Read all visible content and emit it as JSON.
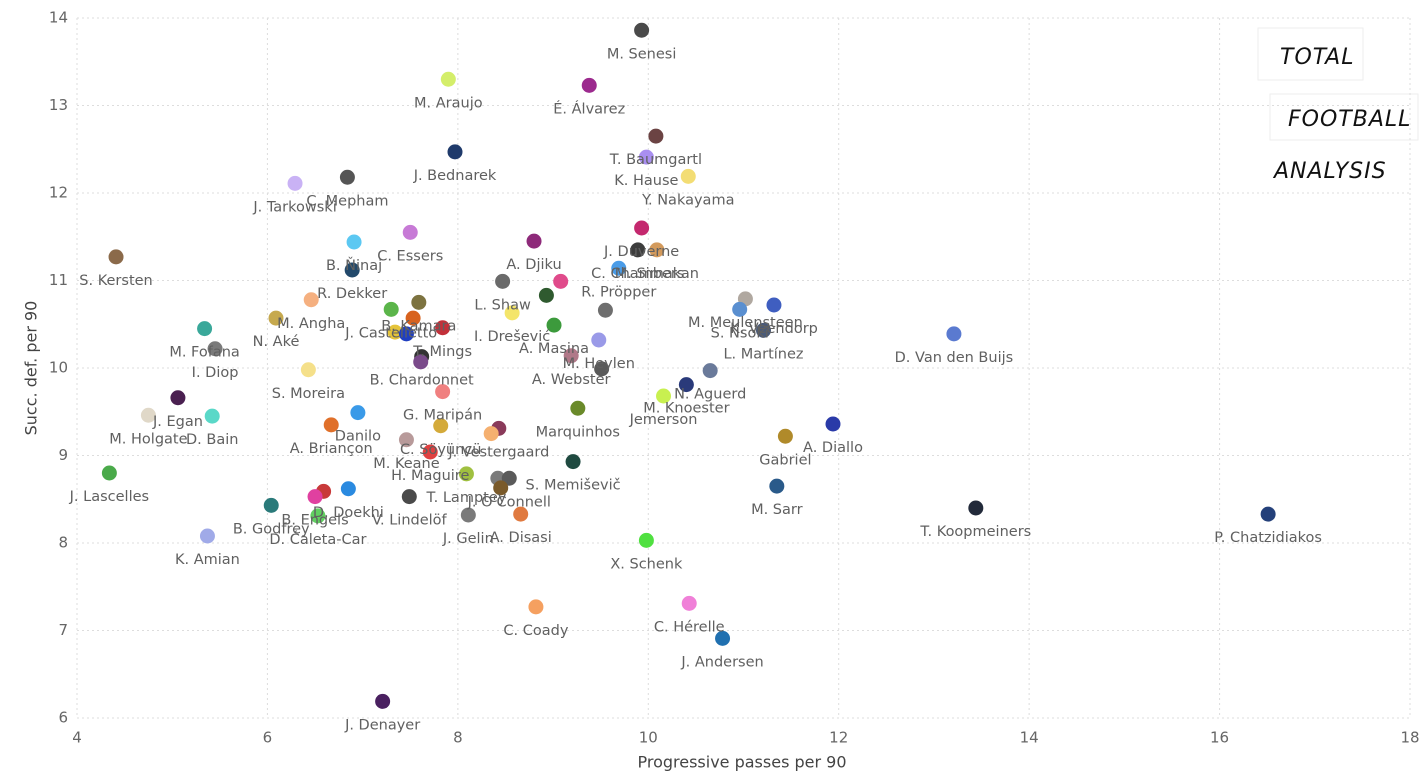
{
  "logo": [
    "TOTAL",
    "FOOTBALL",
    "ANALYSIS"
  ],
  "chart_data": {
    "type": "scatter",
    "x_label": "Progressive passes per 90",
    "y_label": "Succ. def. per 90",
    "xlim": [
      4,
      18
    ],
    "ylim": [
      6,
      14
    ],
    "xticks": [
      4,
      6,
      8,
      10,
      12,
      14,
      16,
      18
    ],
    "yticks": [
      6,
      7,
      8,
      9,
      10,
      11,
      12,
      13,
      14
    ],
    "grid": true,
    "points": [
      {
        "x": 9.93,
        "y": 13.86,
        "label": "M. Senesi",
        "color": "#4a4a4a"
      },
      {
        "x": 7.9,
        "y": 13.3,
        "label": "M. Araujo",
        "color": "#d4ee6a"
      },
      {
        "x": 9.38,
        "y": 13.23,
        "label": "É. Álvarez",
        "color": "#9c2a8e"
      },
      {
        "x": 10.08,
        "y": 12.65,
        "label": "T. Baumgartl",
        "color": "#6b4343"
      },
      {
        "x": 9.98,
        "y": 12.41,
        "label": "K. Hause",
        "color": "#a98ff0"
      },
      {
        "x": 7.97,
        "y": 12.47,
        "label": "J. Bednarek",
        "color": "#1f3a6b"
      },
      {
        "x": 6.84,
        "y": 12.18,
        "label": "C. Mepham",
        "color": "#555555"
      },
      {
        "x": 6.29,
        "y": 12.11,
        "label": "J. Tarkowski",
        "color": "#c9b2f5"
      },
      {
        "x": 10.42,
        "y": 12.19,
        "label": "Y. Nakayama",
        "color": "#f3dd74"
      },
      {
        "x": 9.93,
        "y": 11.6,
        "label": "J. Duverne",
        "color": "#c4286e"
      },
      {
        "x": 10.09,
        "y": 11.35,
        "label": "M. Simakan",
        "color": "#d39a5c"
      },
      {
        "x": 9.89,
        "y": 11.35,
        "label": "C. Chambers",
        "color": "#3d3d3d"
      },
      {
        "x": 6.91,
        "y": 11.44,
        "label": "B. Ňinaj",
        "color": "#5cc8f2"
      },
      {
        "x": 7.5,
        "y": 11.55,
        "label": "C. Essers",
        "color": "#c77ad6"
      },
      {
        "x": 8.8,
        "y": 11.45,
        "label": "A. Djiku",
        "color": "#8e2a7a"
      },
      {
        "x": 4.41,
        "y": 11.27,
        "label": "S. Kersten",
        "color": "#8b6a4a"
      },
      {
        "x": 6.89,
        "y": 11.12,
        "label": "R. Dekker",
        "color": "#22496b"
      },
      {
        "x": 9.69,
        "y": 11.14,
        "label": "R. Pröpper",
        "color": "#4a9ce8"
      },
      {
        "x": 9.08,
        "y": 10.99,
        "label": null,
        "color": "#e04b8b"
      },
      {
        "x": 8.47,
        "y": 10.99,
        "label": "L. Shaw",
        "color": "#6a6a6a"
      },
      {
        "x": 6.46,
        "y": 10.78,
        "label": "M. Angha",
        "color": "#f5b080"
      },
      {
        "x": 7.59,
        "y": 10.75,
        "label": "B. Kamara",
        "color": "#7d7340"
      },
      {
        "x": 8.93,
        "y": 10.83,
        "label": null,
        "color": "#2f5a2f"
      },
      {
        "x": 11.02,
        "y": 10.79,
        "label": "M. Meulensteen",
        "color": "#b0a8a0"
      },
      {
        "x": 11.32,
        "y": 10.72,
        "label": "K. Veendorp",
        "color": "#3f5ec0"
      },
      {
        "x": 10.96,
        "y": 10.67,
        "label": "S. Nsoki",
        "color": "#5a8fd0"
      },
      {
        "x": 9.55,
        "y": 10.66,
        "label": null,
        "color": "#6e6e6e"
      },
      {
        "x": 8.57,
        "y": 10.63,
        "label": "I. Drešević",
        "color": "#f4e56a"
      },
      {
        "x": 5.34,
        "y": 10.45,
        "label": "M. Fofana",
        "color": "#3aa89a"
      },
      {
        "x": 6.09,
        "y": 10.57,
        "label": "N. Aké",
        "color": "#c6a94e"
      },
      {
        "x": 7.3,
        "y": 10.67,
        "label": "J. Castelletto",
        "color": "#5bb54a"
      },
      {
        "x": 7.84,
        "y": 10.46,
        "label": "T. Mings",
        "color": "#c2303a"
      },
      {
        "x": 7.53,
        "y": 10.57,
        "label": null,
        "color": "#d8621e"
      },
      {
        "x": 9.01,
        "y": 10.49,
        "label": "A. Masina",
        "color": "#3c9a3c"
      },
      {
        "x": 9.48,
        "y": 10.32,
        "label": "M. Heylen",
        "color": "#9a9ae8"
      },
      {
        "x": 11.21,
        "y": 10.43,
        "label": "L. Martínez",
        "color": "#4a5a78"
      },
      {
        "x": 13.21,
        "y": 10.39,
        "label": "D. Van den Buijs",
        "color": "#5a7ad0"
      },
      {
        "x": 5.45,
        "y": 10.22,
        "label": "I. Diop",
        "color": "#7a7a7a"
      },
      {
        "x": 7.34,
        "y": 10.41,
        "label": null,
        "color": "#e5c43a"
      },
      {
        "x": 7.46,
        "y": 10.39,
        "label": null,
        "color": "#1f3fc0"
      },
      {
        "x": 7.62,
        "y": 10.13,
        "label": "B. Chardonnet",
        "color": "#333333"
      },
      {
        "x": 7.61,
        "y": 10.07,
        "label": null,
        "color": "#7a4a8a"
      },
      {
        "x": 9.19,
        "y": 10.14,
        "label": "A. Webster",
        "color": "#b07888"
      },
      {
        "x": 9.51,
        "y": 9.99,
        "label": null,
        "color": "#5a5a5a"
      },
      {
        "x": 10.65,
        "y": 9.97,
        "label": "N. Aguerd",
        "color": "#6a7a9a"
      },
      {
        "x": 10.4,
        "y": 9.81,
        "label": "M. Knoester",
        "color": "#2a3a7a"
      },
      {
        "x": 6.43,
        "y": 9.98,
        "label": "S. Moreira",
        "color": "#f5e08a"
      },
      {
        "x": 5.06,
        "y": 9.66,
        "label": "J. Egan",
        "color": "#4a2050"
      },
      {
        "x": 4.75,
        "y": 9.46,
        "label": "M. Holgate",
        "color": "#e0d8c8"
      },
      {
        "x": 5.42,
        "y": 9.45,
        "label": "D. Bain",
        "color": "#5ad8c8"
      },
      {
        "x": 7.84,
        "y": 9.73,
        "label": "G. Maripán",
        "color": "#f08080"
      },
      {
        "x": 9.26,
        "y": 9.54,
        "label": "Marquinhos",
        "color": "#6a8a2a"
      },
      {
        "x": 10.16,
        "y": 9.68,
        "label": "Jemerson",
        "color": "#c8f050"
      },
      {
        "x": 6.95,
        "y": 9.49,
        "label": "Danilo",
        "color": "#3a9ae8"
      },
      {
        "x": 7.82,
        "y": 9.34,
        "label": "C. Söyüncü",
        "color": "#d4aa3a"
      },
      {
        "x": 8.43,
        "y": 9.31,
        "label": "J. Vestergaard",
        "color": "#8a3a5a"
      },
      {
        "x": 8.35,
        "y": 9.25,
        "label": null,
        "color": "#f5b070"
      },
      {
        "x": 6.67,
        "y": 9.35,
        "label": "A. Briançon",
        "color": "#e0702a"
      },
      {
        "x": 7.46,
        "y": 9.18,
        "label": "M. Keane",
        "color": "#b89a9a"
      },
      {
        "x": 11.44,
        "y": 9.22,
        "label": "Gabriel",
        "color": "#b08a2a"
      },
      {
        "x": 11.94,
        "y": 9.36,
        "label": "A. Diallo",
        "color": "#2a3aa8"
      },
      {
        "x": 7.71,
        "y": 9.04,
        "label": "H. Maguire",
        "color": "#e04040"
      },
      {
        "x": 9.21,
        "y": 8.93,
        "label": "S. Memiševič",
        "color": "#1f4a40"
      },
      {
        "x": 4.34,
        "y": 8.8,
        "label": "J. Lascelles",
        "color": "#4aaa4a"
      },
      {
        "x": 8.09,
        "y": 8.79,
        "label": "T. Lamptey",
        "color": "#a0c040"
      },
      {
        "x": 8.42,
        "y": 8.74,
        "label": null,
        "color": "#7a7a7a"
      },
      {
        "x": 8.54,
        "y": 8.74,
        "label": "J. O'Connell",
        "color": "#5a5a5a"
      },
      {
        "x": 8.45,
        "y": 8.63,
        "label": null,
        "color": "#7a5a2a"
      },
      {
        "x": 11.35,
        "y": 8.65,
        "label": "M. Sarr",
        "color": "#2a5a8a"
      },
      {
        "x": 13.44,
        "y": 8.4,
        "label": "T. Koopmeiners",
        "color": "#222a3a"
      },
      {
        "x": 16.51,
        "y": 8.33,
        "label": "P. Chatzidiakos",
        "color": "#24407a"
      },
      {
        "x": 6.04,
        "y": 8.43,
        "label": "B. Godfrey",
        "color": "#2a7a7a"
      },
      {
        "x": 6.59,
        "y": 8.59,
        "label": null,
        "color": "#c83a3a"
      },
      {
        "x": 6.5,
        "y": 8.53,
        "label": "B. Engels",
        "color": "#e040a0"
      },
      {
        "x": 6.85,
        "y": 8.62,
        "label": "D. Doekhi",
        "color": "#2a8ae0"
      },
      {
        "x": 7.49,
        "y": 8.53,
        "label": "V. Lindelöf",
        "color": "#4a4a4a"
      },
      {
        "x": 6.53,
        "y": 8.31,
        "label": "D. Ćaleta-Car",
        "color": "#60d060"
      },
      {
        "x": 8.11,
        "y": 8.32,
        "label": "J. Gelin",
        "color": "#7a7a7a"
      },
      {
        "x": 8.66,
        "y": 8.33,
        "label": "A. Disasi",
        "color": "#e07a40"
      },
      {
        "x": 5.37,
        "y": 8.08,
        "label": "K. Amian",
        "color": "#a0aae8"
      },
      {
        "x": 9.98,
        "y": 8.03,
        "label": "X. Schenk",
        "color": "#50e040"
      },
      {
        "x": 8.82,
        "y": 7.27,
        "label": "C. Coady",
        "color": "#f5a060"
      },
      {
        "x": 10.43,
        "y": 7.31,
        "label": "C. Hérelle",
        "color": "#f080d8"
      },
      {
        "x": 10.78,
        "y": 6.91,
        "label": "J. Andersen",
        "color": "#2070b0"
      },
      {
        "x": 7.21,
        "y": 6.19,
        "label": "J. Denayer",
        "color": "#4a2060"
      }
    ]
  }
}
